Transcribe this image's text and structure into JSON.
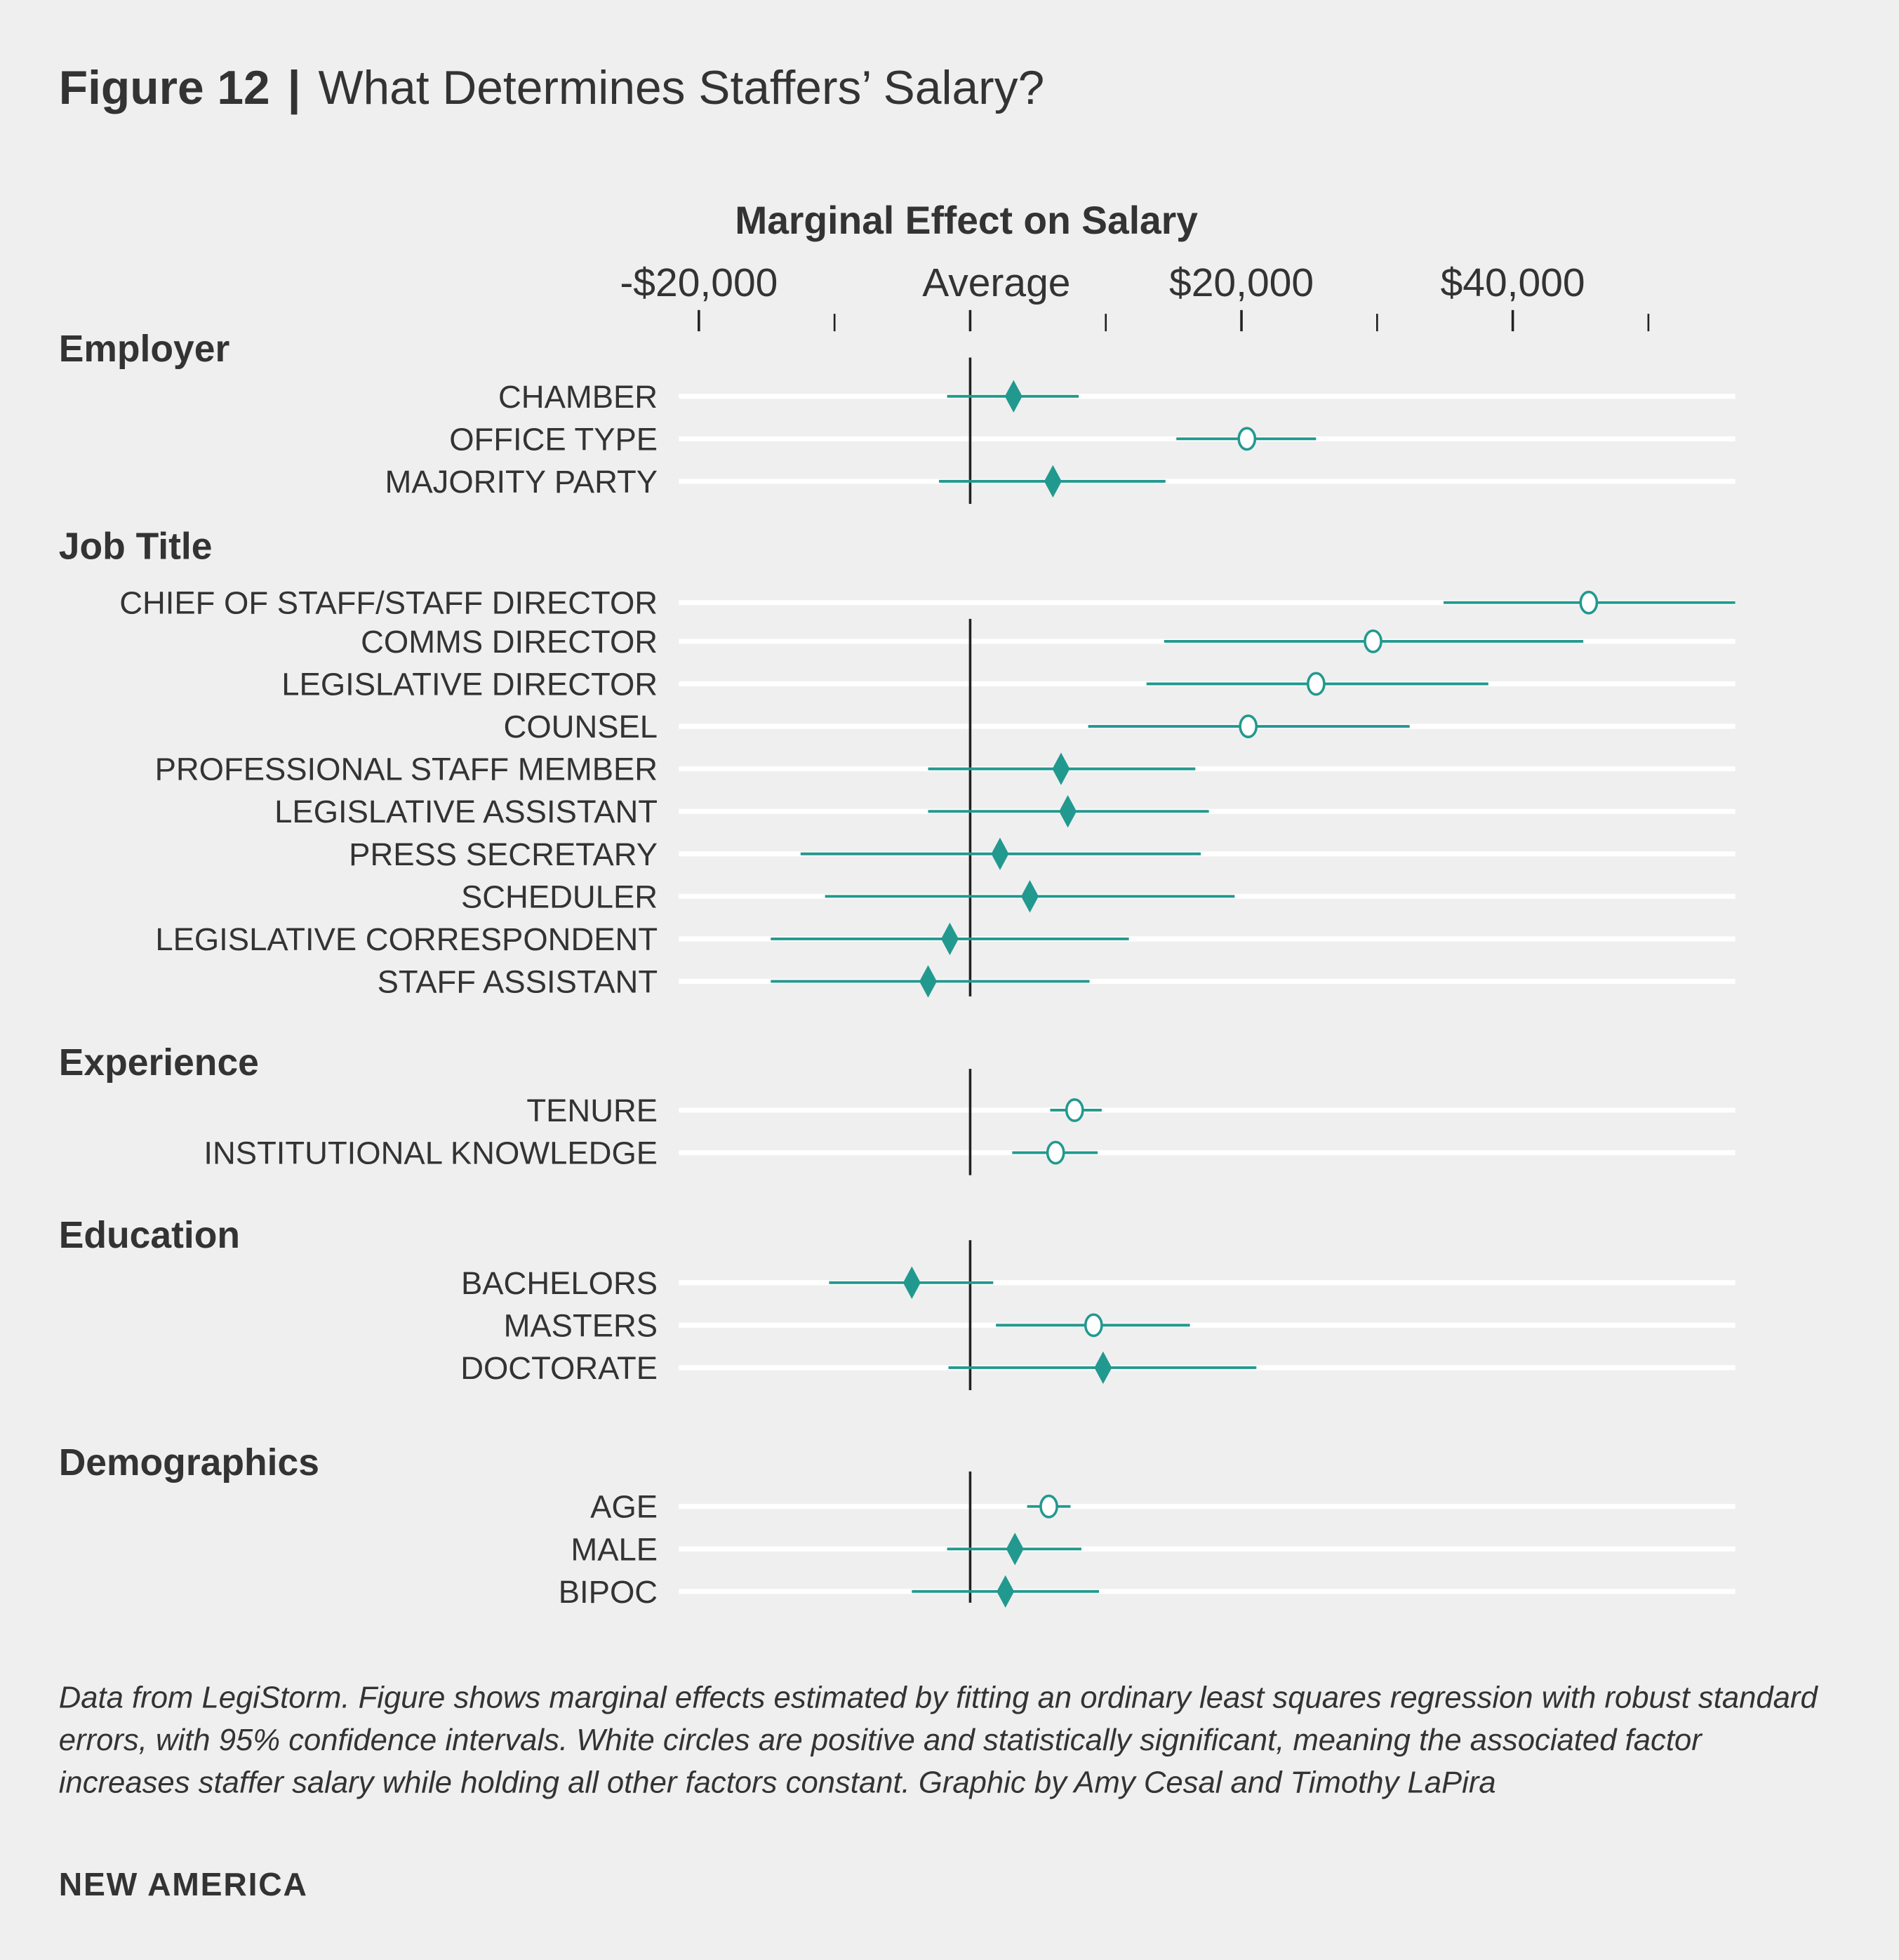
{
  "figure_label": "Figure 12",
  "separator": "|",
  "title": "What Determines Staffers’ Salary?",
  "caption": "Data from LegiStorm. Figure shows marginal effects estimated by fitting an ordinary least squares regression with robust standard errors, with 95% confidence intervals. White circles are positive and statistically significant, meaning the associated factor increases staffer salary while holding all other factors constant. Graphic by Amy Cesal and Timothy LaPira",
  "brand": "NEW AMERICA",
  "colors": {
    "marker": "#22998e",
    "background": "#efefef",
    "gridline": "#ffffff",
    "text": "#333333"
  },
  "chart_data": {
    "type": "dot-whisker",
    "xlabel": "Marginal Effect on Salary",
    "xlim": [
      -20000,
      56500
    ],
    "tick_values": [
      -20000,
      -10000,
      0,
      10000,
      20000,
      30000,
      40000,
      50000
    ],
    "tick_labels": [
      {
        "value": -20000,
        "label": "-$20,000"
      },
      {
        "value": 0,
        "label": "Average"
      },
      {
        "value": 20000,
        "label": "$20,000"
      },
      {
        "value": 40000,
        "label": "$40,000"
      }
    ],
    "marker_legend": {
      "circle": "positive and statistically significant",
      "diamond": "not significant"
    },
    "groups": [
      {
        "name": "Employer",
        "rows": [
          {
            "label": "CHAMBER",
            "estimate": 3200,
            "low": -1700,
            "high": 8000,
            "marker": "diamond"
          },
          {
            "label": "OFFICE TYPE",
            "estimate": 20400,
            "low": 15200,
            "high": 25500,
            "marker": "circle"
          },
          {
            "label": "MAJORITY PARTY",
            "estimate": 6100,
            "low": -2300,
            "high": 14400,
            "marker": "diamond"
          }
        ]
      },
      {
        "name": "Job Title",
        "rows": [
          {
            "label": "CHIEF OF STAFF/STAFF DIRECTOR",
            "estimate": 45600,
            "low": 34900,
            "high": 56400,
            "marker": "circle"
          },
          {
            "label": "COMMS DIRECTOR",
            "estimate": 29700,
            "low": 14300,
            "high": 45200,
            "marker": "circle"
          },
          {
            "label": "LEGISLATIVE DIRECTOR",
            "estimate": 25500,
            "low": 13000,
            "high": 38200,
            "marker": "circle"
          },
          {
            "label": "COUNSEL",
            "estimate": 20500,
            "low": 8700,
            "high": 32400,
            "marker": "circle"
          },
          {
            "label": "PROFESSIONAL STAFF MEMBER",
            "estimate": 6700,
            "low": -3100,
            "high": 16600,
            "marker": "diamond"
          },
          {
            "label": "LEGISLATIVE ASSISTANT",
            "estimate": 7200,
            "low": -3100,
            "high": 17600,
            "marker": "diamond"
          },
          {
            "label": "PRESS SECRETARY",
            "estimate": 2200,
            "low": -12500,
            "high": 17000,
            "marker": "diamond"
          },
          {
            "label": "SCHEDULER",
            "estimate": 4400,
            "low": -10700,
            "high": 19500,
            "marker": "diamond"
          },
          {
            "label": "LEGISLATIVE CORRESPONDENT",
            "estimate": -1500,
            "low": -14700,
            "high": 11700,
            "marker": "diamond"
          },
          {
            "label": "STAFF ASSISTANT",
            "estimate": -3100,
            "low": -14700,
            "high": 8800,
            "marker": "diamond"
          }
        ]
      },
      {
        "name": "Experience",
        "rows": [
          {
            "label": "TENURE",
            "estimate": 7700,
            "low": 5900,
            "high": 9700,
            "marker": "circle"
          },
          {
            "label": "INSTITUTIONAL KNOWLEDGE",
            "estimate": 6300,
            "low": 3100,
            "high": 9400,
            "marker": "circle"
          }
        ]
      },
      {
        "name": "Education",
        "rows": [
          {
            "label": "BACHELORS",
            "estimate": -4300,
            "low": -10400,
            "high": 1700,
            "marker": "diamond"
          },
          {
            "label": "MASTERS",
            "estimate": 9100,
            "low": 1900,
            "high": 16200,
            "marker": "circle"
          },
          {
            "label": "DOCTORATE",
            "estimate": 9800,
            "low": -1600,
            "high": 21100,
            "marker": "diamond"
          }
        ]
      },
      {
        "name": "Demographics",
        "rows": [
          {
            "label": "AGE",
            "estimate": 5800,
            "low": 4200,
            "high": 7400,
            "marker": "circle"
          },
          {
            "label": "MALE",
            "estimate": 3300,
            "low": -1700,
            "high": 8200,
            "marker": "diamond"
          },
          {
            "label": "BIPOC",
            "estimate": 2600,
            "low": -4300,
            "high": 9500,
            "marker": "diamond"
          }
        ]
      }
    ]
  }
}
